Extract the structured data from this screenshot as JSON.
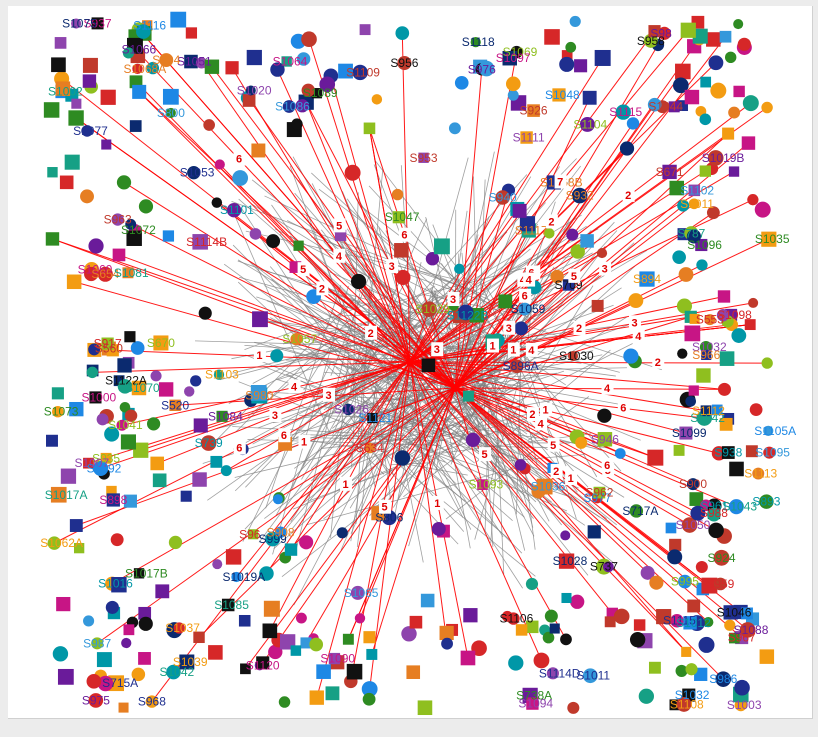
{
  "graph": {
    "node_colors": [
      "#1f2f8f",
      "#0b2a6f",
      "#16a085",
      "#2e8b22",
      "#8fbf1f",
      "#f39c12",
      "#e67e22",
      "#c0392b",
      "#d62728",
      "#c71585",
      "#8e44ad",
      "#6a1b9a",
      "#1e88e5",
      "#3498db",
      "#0097a7",
      "#111111"
    ],
    "edge_color": "#ff0000",
    "background_edge_color": "#808080",
    "hubs": [
      {
        "id": "hub-a"
      },
      {
        "id": "hub-b"
      }
    ],
    "labels": [
      "S1115",
      "S806",
      "S1017A",
      "S738A",
      "S1093",
      "S1103",
      "S1117",
      "S926",
      "S1098",
      "S1064",
      "S1111",
      "S1066",
      "S1032",
      "S1036",
      "S1101",
      "S1122A",
      "S1114D",
      "S1099",
      "S1042",
      "S1072",
      "S935",
      "S1011",
      "S932",
      "S671",
      "S634",
      "S1115",
      "S1032",
      "S98",
      "S977",
      "S987",
      "S938",
      "S1046",
      "S715A",
      "S1059",
      "S1002",
      "S1017B",
      "S1069",
      "S894",
      "S966",
      "S963",
      "S967",
      "S898",
      "S1003",
      "S1051",
      "S1105A",
      "S1065",
      "S739",
      "S737",
      "S520",
      "S717A",
      "S1043",
      "S1096",
      "S995",
      "S1113",
      "S1068B",
      "S953",
      "S96",
      "S1060",
      "S1050",
      "S1088",
      "S1116",
      "S1102",
      "S1012",
      "S956",
      "S1077",
      "S1118",
      "S1070",
      "S1035",
      "S670",
      "S1037",
      "S1068A",
      "S1109",
      "S1114B",
      "S1097",
      "S1094",
      "S1084",
      "S986",
      "S940",
      "S1122B",
      "S1106",
      "S1011",
      "S1019A",
      "S1042",
      "S1073",
      "S1057",
      "S1062A",
      "S654",
      "S560",
      "S553",
      "S1000",
      "S1007",
      "S1019B",
      "S1121",
      "S1086",
      "S961",
      "S958",
      "S968",
      "S999",
      "S787",
      "S924",
      "S1041",
      "S1112",
      "S804",
      "S900",
      "S959",
      "S937",
      "S946",
      "S976",
      "S1092",
      "S1095",
      "S1016",
      "S1030",
      "S1053",
      "S1075",
      "S1085",
      "S1089",
      "S1029",
      "S1039",
      "S908",
      "S1044",
      "S988",
      "S1120",
      "S1026",
      "S975",
      "S1048",
      "S800",
      "S893",
      "S709",
      "S896A",
      "S1028",
      "S1081",
      "S1047",
      "S1104",
      "S1108",
      "S980",
      "S962",
      "S917",
      "S1090",
      "S1020"
    ],
    "edge_numbers": [
      "1",
      "2",
      "3",
      "4",
      "5",
      "6",
      "1",
      "2",
      "3",
      "4",
      "5",
      "6",
      "1",
      "2",
      "3",
      "4",
      "5",
      "6",
      "1",
      "2",
      "3",
      "4",
      "5",
      "6",
      "7",
      "1",
      "2",
      "3",
      "4",
      "5",
      "6",
      "1",
      "2",
      "3",
      "4",
      "5",
      "6",
      "1",
      "2",
      "3",
      "4",
      "5",
      "6",
      "1",
      "2",
      "3",
      "4",
      "5",
      "6"
    ]
  }
}
